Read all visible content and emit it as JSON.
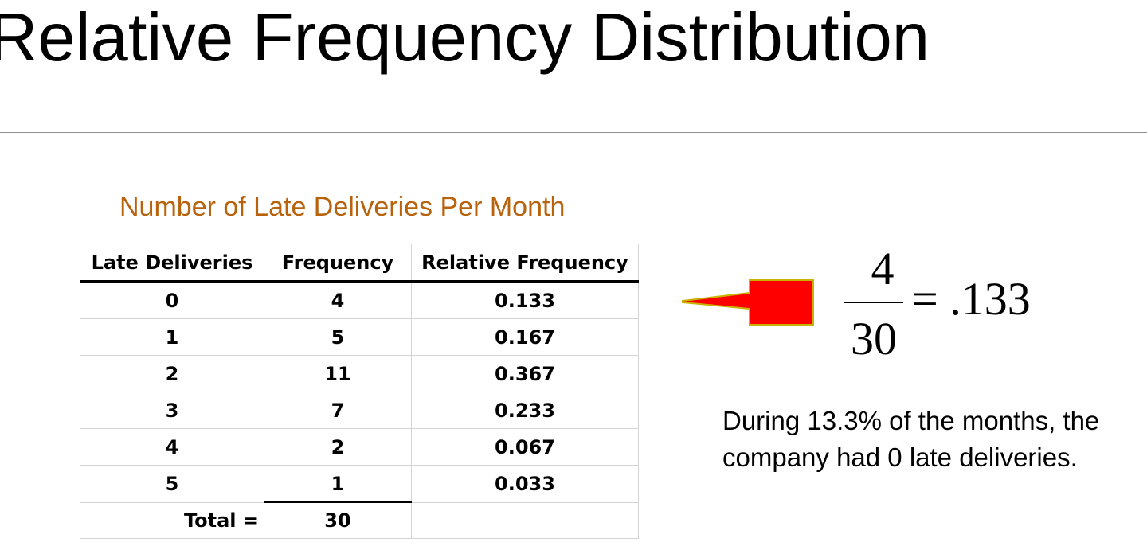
{
  "slide": {
    "title": "Relative Frequency Distribution"
  },
  "table": {
    "caption": "Number of Late Deliveries Per Month",
    "caption_color": "#b8620c",
    "headers": [
      "Late Deliveries",
      "Frequency",
      "Relative Frequency"
    ],
    "rows": [
      [
        "0",
        "4",
        "0.133"
      ],
      [
        "1",
        "5",
        "0.167"
      ],
      [
        "2",
        "11",
        "0.367"
      ],
      [
        "3",
        "7",
        "0.233"
      ],
      [
        "4",
        "2",
        "0.067"
      ],
      [
        "5",
        "1",
        "0.033"
      ]
    ],
    "total_label": "Total =",
    "total_value": "30"
  },
  "pointer": {
    "icon": "left-pointing-callout-arrow-icon",
    "fill_color": "#ff0000",
    "outline_color": "#c8b400"
  },
  "formula": {
    "numerator": "4",
    "denominator": "30",
    "result": "= .133"
  },
  "explanation": {
    "text": "During 13.3% of the months, the company had 0 late deliveries."
  }
}
